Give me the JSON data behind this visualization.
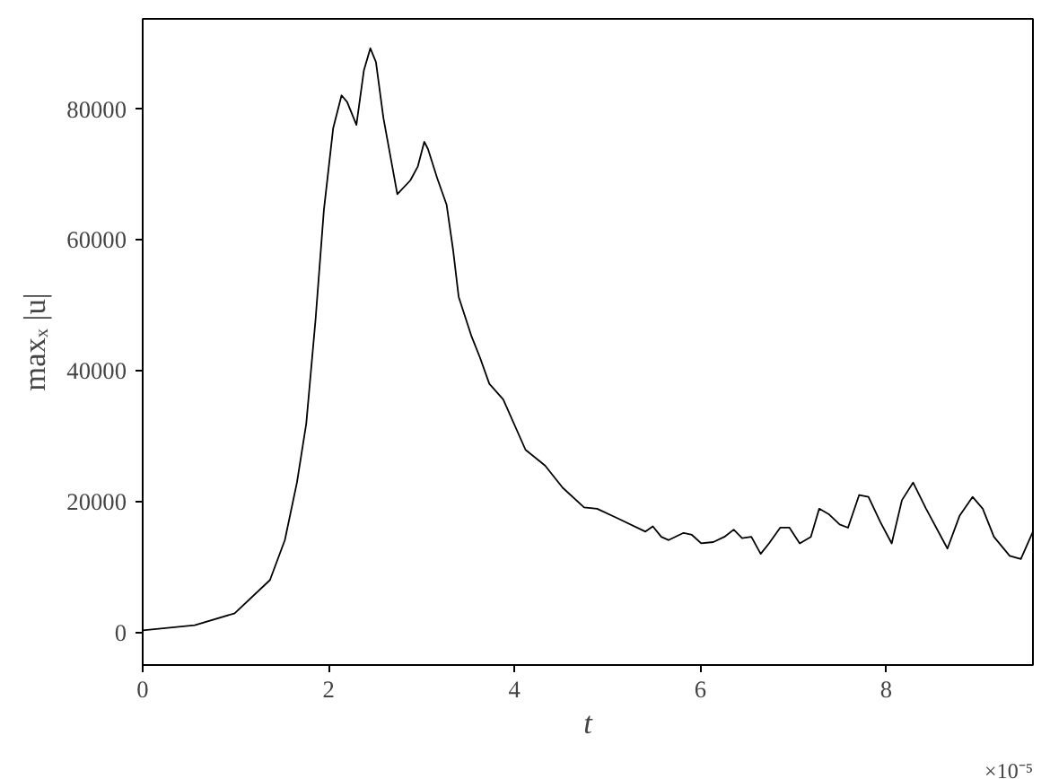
{
  "chart_data": {
    "type": "line",
    "xlabel": "t",
    "ylabel": "maxₓ |u|",
    "annotations": [
      "×10⁻⁵"
    ],
    "xlim": [
      0,
      9.58
    ],
    "ylim": [
      -5000,
      93800
    ],
    "xticks": [
      0,
      2,
      4,
      6,
      8
    ],
    "yticks": [
      0,
      20000,
      40000,
      60000,
      80000
    ],
    "grid": false,
    "marker": "none",
    "line_style": "solid",
    "series": [
      {
        "color": "#000000",
        "x": [
          0,
          0.56,
          0.99,
          1.37,
          1.53,
          1.66,
          1.76,
          1.86,
          1.95,
          2.05,
          2.14,
          2.2,
          2.3,
          2.38,
          2.45,
          2.51,
          2.59,
          2.74,
          2.88,
          2.96,
          3.03,
          3.07,
          3.17,
          3.27,
          3.34,
          3.4,
          3.54,
          3.63,
          3.73,
          3.88,
          4.12,
          4.33,
          4.52,
          4.75,
          4.89,
          5.1,
          5.41,
          5.49,
          5.58,
          5.66,
          5.82,
          5.91,
          6.01,
          6.14,
          6.26,
          6.36,
          6.45,
          6.55,
          6.65,
          6.74,
          6.86,
          6.96,
          7.07,
          7.19,
          7.28,
          7.38,
          7.5,
          7.59,
          7.71,
          7.81,
          7.94,
          8.06,
          8.17,
          8.29,
          8.43,
          8.66,
          8.79,
          8.93,
          9.04,
          9.16,
          9.33,
          9.45,
          9.58
        ],
        "values": [
          300,
          1100,
          2900,
          8000,
          14100,
          22900,
          31900,
          47800,
          64600,
          77100,
          82100,
          81100,
          77600,
          85900,
          89300,
          87200,
          78700,
          67000,
          69100,
          71200,
          75000,
          73900,
          69400,
          65400,
          58500,
          51300,
          45200,
          42000,
          38000,
          35600,
          27900,
          25500,
          22100,
          19100,
          18900,
          17500,
          15400,
          16200,
          14600,
          14100,
          15200,
          14900,
          13600,
          13800,
          14600,
          15700,
          14400,
          14600,
          12000,
          13600,
          16000,
          16000,
          13600,
          14600,
          18900,
          18100,
          16500,
          16000,
          21000,
          20700,
          16800,
          13600,
          20200,
          22900,
          18900,
          12800,
          17800,
          20700,
          18900,
          14600,
          11700,
          11200,
          15400
        ]
      }
    ]
  }
}
